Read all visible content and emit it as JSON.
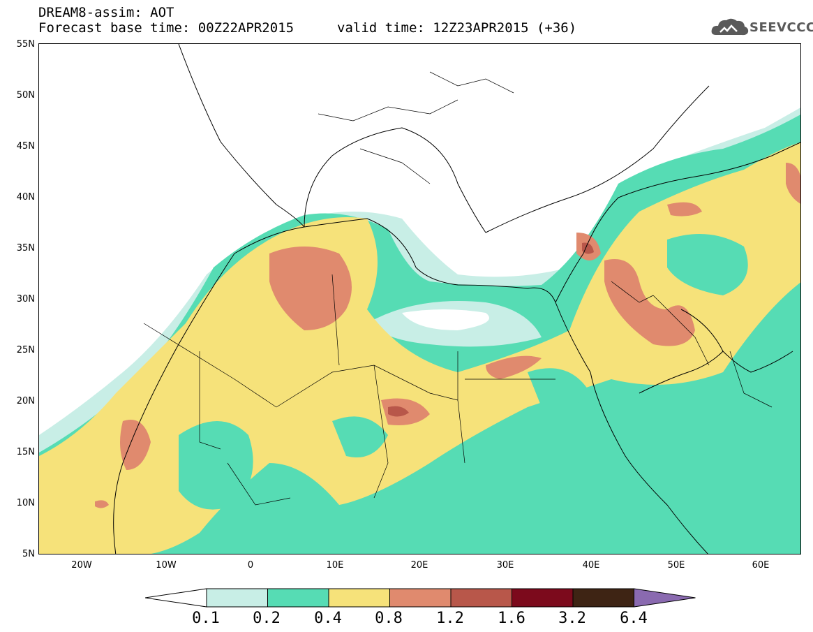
{
  "header": {
    "line1": "DREAM8-assim: AOT",
    "line2": "Forecast base time: 00Z22APR2015",
    "valid": "valid time: 12Z23APR2015 (+36)"
  },
  "logo": {
    "text": "SEEVCCC",
    "icon": "cloud-icon"
  },
  "map": {
    "variable": "AOT",
    "y_axis_labels": [
      "55N",
      "50N",
      "45N",
      "40N",
      "35N",
      "30N",
      "25N",
      "20N",
      "15N",
      "10N",
      "5N"
    ],
    "x_axis_labels": [
      "20W",
      "10W",
      "0",
      "10E",
      "20E",
      "30E",
      "40E",
      "50E",
      "60E"
    ]
  },
  "colorbar": {
    "labels": [
      "0.1",
      "0.2",
      "0.4",
      "0.8",
      "1.2",
      "1.6",
      "3.2",
      "6.4"
    ],
    "colors": [
      "#ffffff",
      "#c8eee6",
      "#56dcb4",
      "#f6e27a",
      "#e08a6e",
      "#b8574a",
      "#7c0a1c",
      "#3e2414",
      "#8a6ab0"
    ]
  }
}
